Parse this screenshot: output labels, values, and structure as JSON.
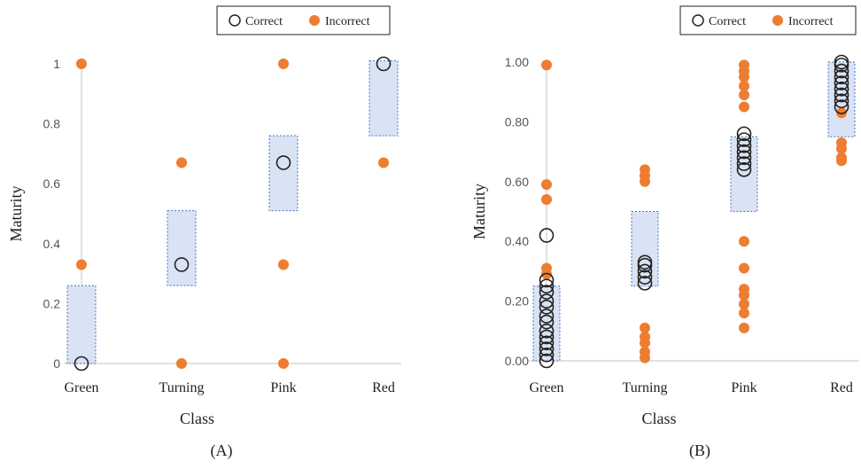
{
  "colors": {
    "correct_stroke": "#222222",
    "incorrect_fill": "#ed7d31",
    "box_fill": "#dae3f3",
    "box_stroke": "#4472c4",
    "axis": "#d9d9d9"
  },
  "chart_data": [
    {
      "type": "scatter",
      "caption": "(A)",
      "xlabel": "Class",
      "ylabel": "Maturity",
      "categories": [
        "Green",
        "Turning",
        "Pink",
        "Red"
      ],
      "ylim": [
        0,
        1
      ],
      "yticks": [
        "0",
        "0.2",
        "0.4",
        "0.6",
        "0.8",
        "1"
      ],
      "ytick_values": [
        0,
        0.2,
        0.4,
        0.6,
        0.8,
        1
      ],
      "legend": {
        "position": "top-right",
        "entries": [
          "Correct",
          "Incorrect"
        ]
      },
      "ranges": [
        {
          "category": "Green",
          "low": 0,
          "high": 0.26
        },
        {
          "category": "Turning",
          "low": 0.26,
          "high": 0.51
        },
        {
          "category": "Pink",
          "low": 0.51,
          "high": 0.76
        },
        {
          "category": "Red",
          "low": 0.76,
          "high": 1.01
        }
      ],
      "series": [
        {
          "name": "Correct",
          "points": [
            {
              "category": "Green",
              "y": 0
            },
            {
              "category": "Turning",
              "y": 0.33
            },
            {
              "category": "Pink",
              "y": 0.67
            },
            {
              "category": "Red",
              "y": 1
            }
          ]
        },
        {
          "name": "Incorrect",
          "points": [
            {
              "category": "Green",
              "y": 1
            },
            {
              "category": "Green",
              "y": 0.33
            },
            {
              "category": "Turning",
              "y": 0.67
            },
            {
              "category": "Turning",
              "y": 0
            },
            {
              "category": "Pink",
              "y": 1
            },
            {
              "category": "Pink",
              "y": 0.33
            },
            {
              "category": "Pink",
              "y": 0
            },
            {
              "category": "Red",
              "y": 0.67
            }
          ]
        }
      ]
    },
    {
      "type": "scatter",
      "caption": "(B)",
      "xlabel": "Class",
      "ylabel": "Maturity",
      "categories": [
        "Green",
        "Turning",
        "Pink",
        "Red"
      ],
      "ylim": [
        0,
        1
      ],
      "yticks": [
        "0.00",
        "0.20",
        "0.40",
        "0.60",
        "0.80",
        "1.00"
      ],
      "ytick_values": [
        0,
        0.2,
        0.4,
        0.6,
        0.8,
        1
      ],
      "legend": {
        "position": "top-right",
        "entries": [
          "Correct",
          "Incorrect"
        ]
      },
      "ranges": [
        {
          "category": "Green",
          "low": 0,
          "high": 0.25
        },
        {
          "category": "Turning",
          "low": 0.25,
          "high": 0.5
        },
        {
          "category": "Pink",
          "low": 0.5,
          "high": 0.75
        },
        {
          "category": "Red",
          "low": 0.75,
          "high": 1.0
        }
      ],
      "series": [
        {
          "name": "Correct",
          "points": [
            {
              "category": "Green",
              "y": 0.42
            },
            {
              "category": "Green",
              "y": 0.27
            },
            {
              "category": "Green",
              "y": 0.25
            },
            {
              "category": "Green",
              "y": 0.23
            },
            {
              "category": "Green",
              "y": 0.2
            },
            {
              "category": "Green",
              "y": 0.18
            },
            {
              "category": "Green",
              "y": 0.15
            },
            {
              "category": "Green",
              "y": 0.13
            },
            {
              "category": "Green",
              "y": 0.1
            },
            {
              "category": "Green",
              "y": 0.08
            },
            {
              "category": "Green",
              "y": 0.06
            },
            {
              "category": "Green",
              "y": 0.04
            },
            {
              "category": "Green",
              "y": 0.02
            },
            {
              "category": "Green",
              "y": 0.0
            },
            {
              "category": "Turning",
              "y": 0.33
            },
            {
              "category": "Turning",
              "y": 0.32
            },
            {
              "category": "Turning",
              "y": 0.3
            },
            {
              "category": "Turning",
              "y": 0.28
            },
            {
              "category": "Turning",
              "y": 0.26
            },
            {
              "category": "Pink",
              "y": 0.76
            },
            {
              "category": "Pink",
              "y": 0.74
            },
            {
              "category": "Pink",
              "y": 0.72
            },
            {
              "category": "Pink",
              "y": 0.7
            },
            {
              "category": "Pink",
              "y": 0.68
            },
            {
              "category": "Pink",
              "y": 0.66
            },
            {
              "category": "Pink",
              "y": 0.64
            },
            {
              "category": "Red",
              "y": 1.0
            },
            {
              "category": "Red",
              "y": 0.99
            },
            {
              "category": "Red",
              "y": 0.97
            },
            {
              "category": "Red",
              "y": 0.95
            },
            {
              "category": "Red",
              "y": 0.93
            },
            {
              "category": "Red",
              "y": 0.91
            },
            {
              "category": "Red",
              "y": 0.89
            },
            {
              "category": "Red",
              "y": 0.87
            },
            {
              "category": "Red",
              "y": 0.85
            }
          ]
        },
        {
          "name": "Incorrect",
          "points": [
            {
              "category": "Green",
              "y": 0.99
            },
            {
              "category": "Green",
              "y": 0.59
            },
            {
              "category": "Green",
              "y": 0.54
            },
            {
              "category": "Green",
              "y": 0.31
            },
            {
              "category": "Green",
              "y": 0.29
            },
            {
              "category": "Turning",
              "y": 0.64
            },
            {
              "category": "Turning",
              "y": 0.62
            },
            {
              "category": "Turning",
              "y": 0.6
            },
            {
              "category": "Turning",
              "y": 0.11
            },
            {
              "category": "Turning",
              "y": 0.08
            },
            {
              "category": "Turning",
              "y": 0.06
            },
            {
              "category": "Turning",
              "y": 0.03
            },
            {
              "category": "Turning",
              "y": 0.01
            },
            {
              "category": "Pink",
              "y": 0.99
            },
            {
              "category": "Pink",
              "y": 0.97
            },
            {
              "category": "Pink",
              "y": 0.95
            },
            {
              "category": "Pink",
              "y": 0.92
            },
            {
              "category": "Pink",
              "y": 0.89
            },
            {
              "category": "Pink",
              "y": 0.85
            },
            {
              "category": "Pink",
              "y": 0.4
            },
            {
              "category": "Pink",
              "y": 0.31
            },
            {
              "category": "Pink",
              "y": 0.24
            },
            {
              "category": "Pink",
              "y": 0.22
            },
            {
              "category": "Pink",
              "y": 0.19
            },
            {
              "category": "Pink",
              "y": 0.16
            },
            {
              "category": "Pink",
              "y": 0.11
            },
            {
              "category": "Red",
              "y": 0.83
            },
            {
              "category": "Red",
              "y": 0.73
            },
            {
              "category": "Red",
              "y": 0.71
            },
            {
              "category": "Red",
              "y": 0.68
            },
            {
              "category": "Red",
              "y": 0.67
            }
          ]
        }
      ]
    }
  ]
}
